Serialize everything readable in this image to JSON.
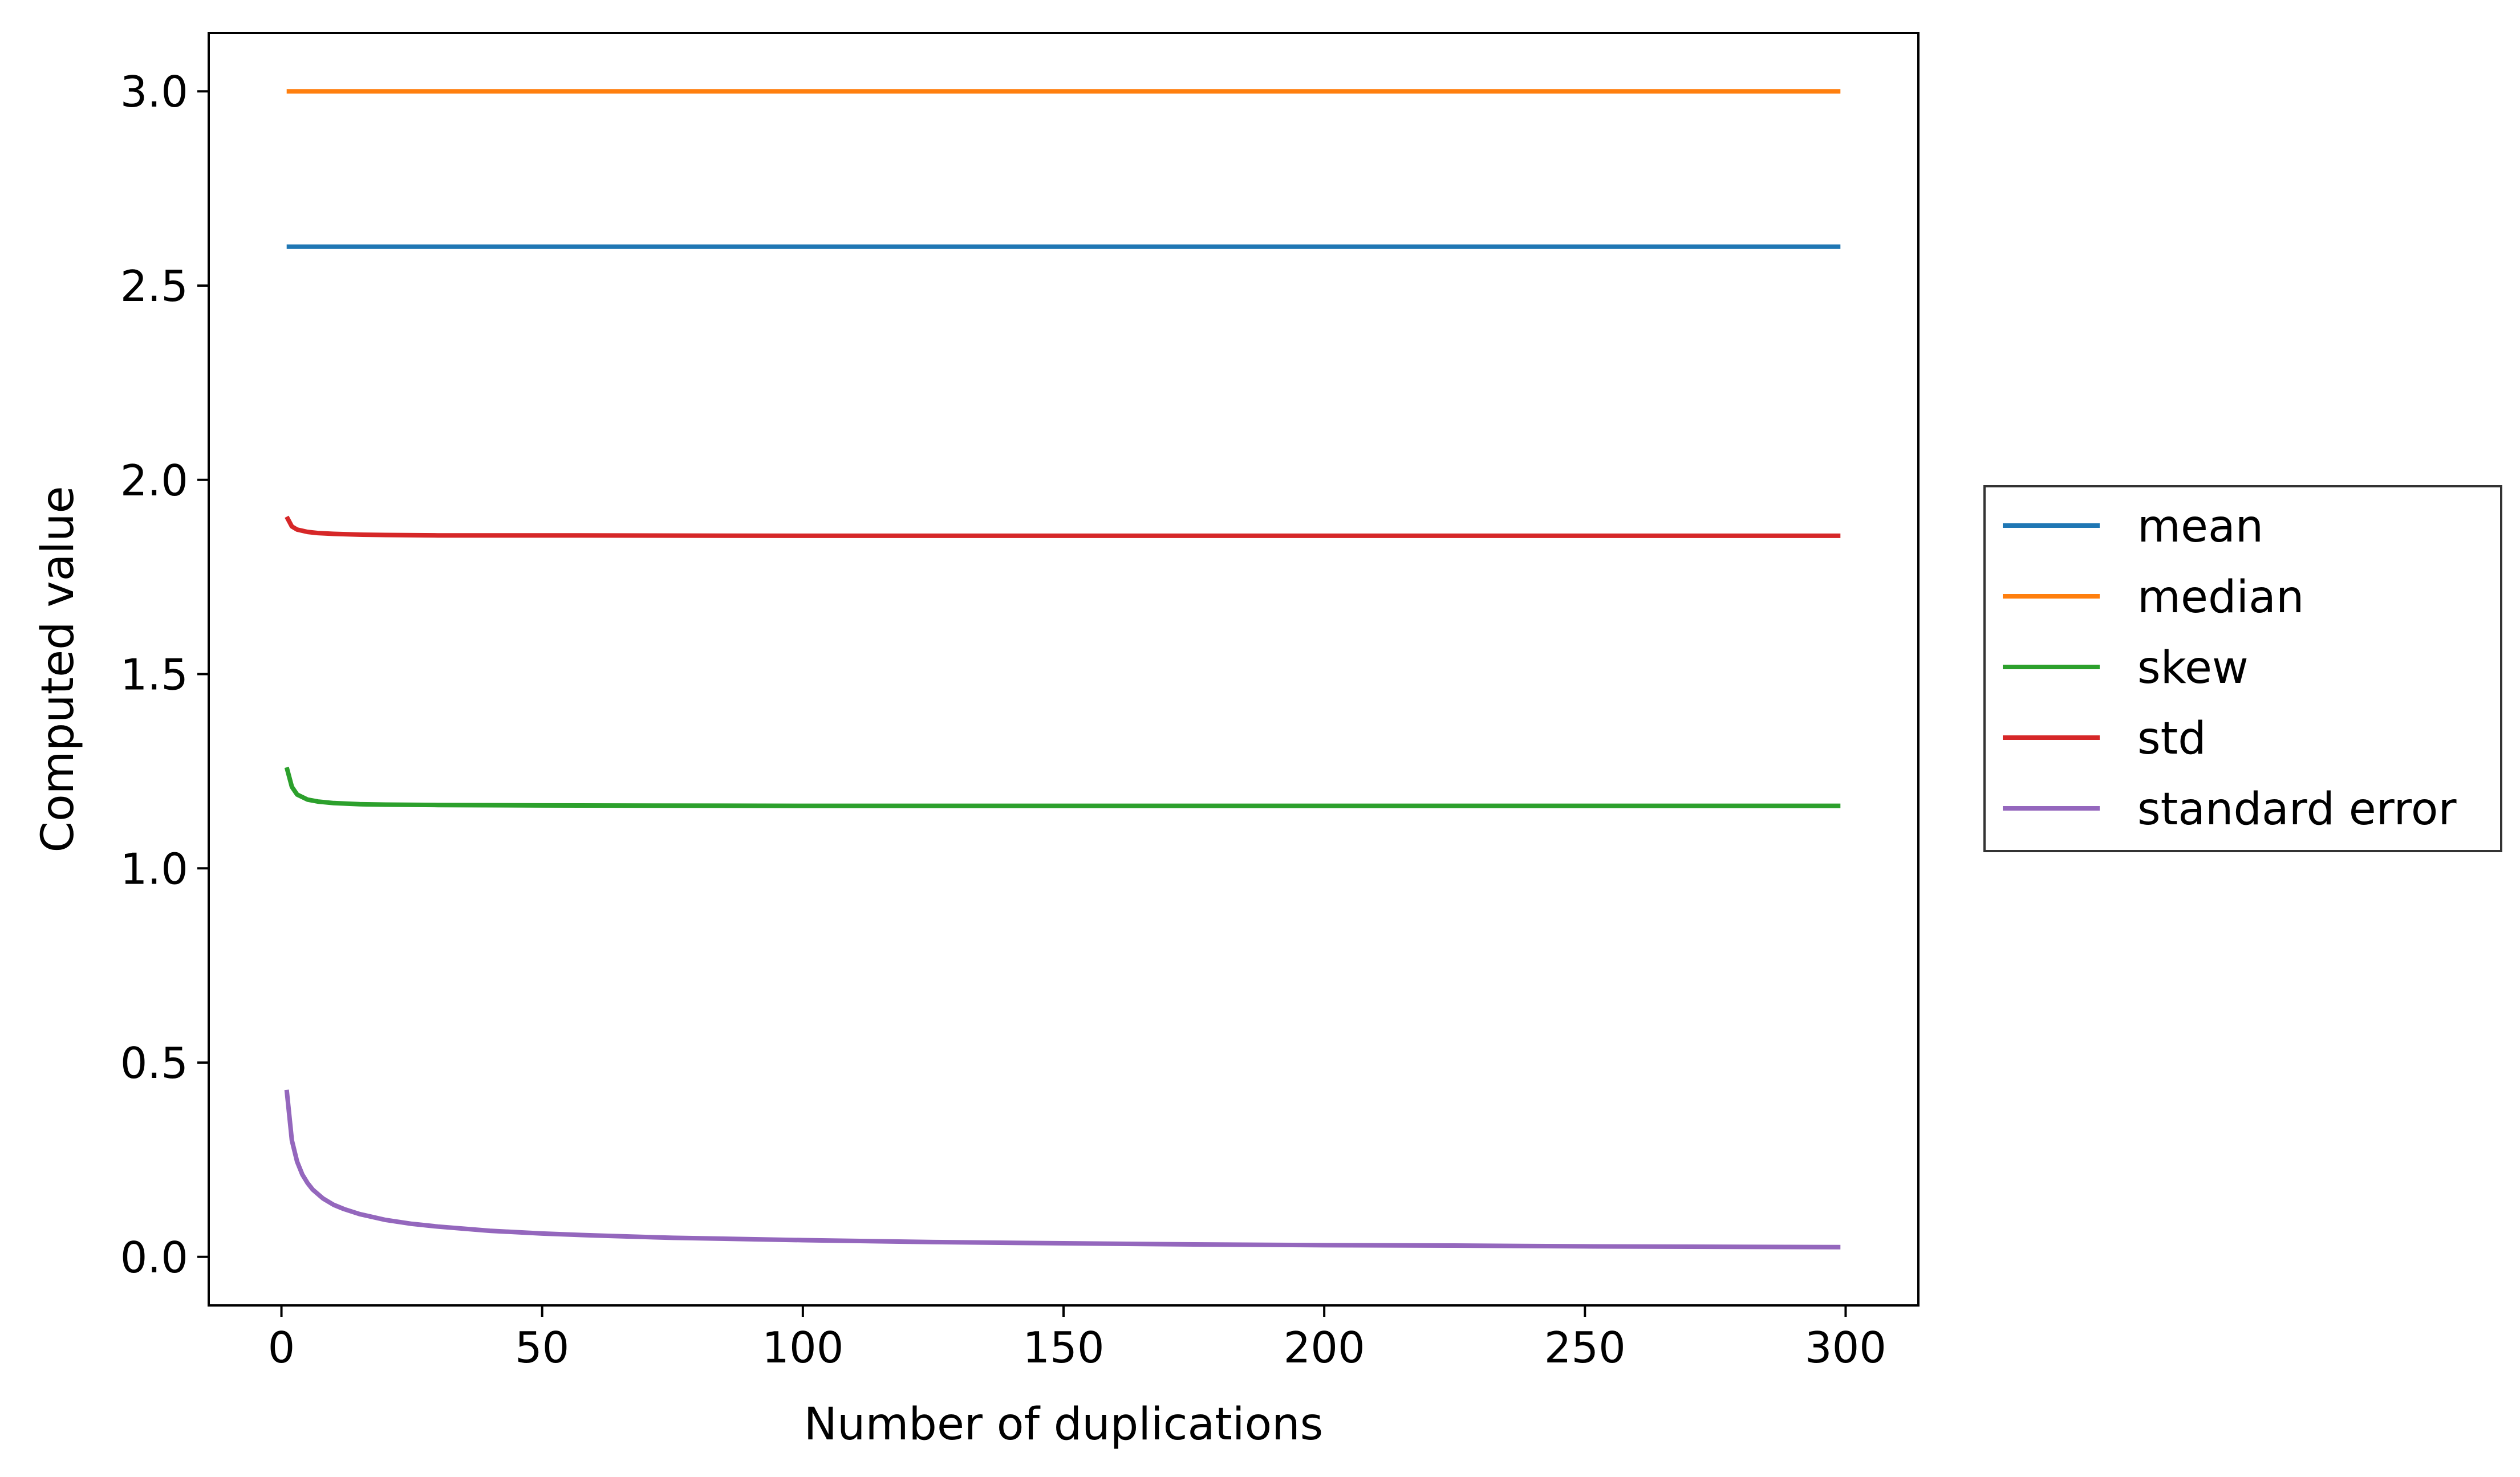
{
  "chart_data": {
    "type": "line",
    "title": "",
    "xlabel": "Number of duplications",
    "ylabel": "Computed value",
    "xlim": [
      -13.95,
      313.95
    ],
    "ylim": [
      -0.125,
      3.15
    ],
    "x_ticks": [
      0,
      50,
      100,
      150,
      200,
      250,
      300
    ],
    "x_tick_labels": [
      "0",
      "50",
      "100",
      "150",
      "200",
      "250",
      "300"
    ],
    "y_ticks": [
      0.0,
      0.5,
      1.0,
      1.5,
      2.0,
      2.5,
      3.0
    ],
    "y_tick_labels": [
      "0.0",
      "0.5",
      "1.0",
      "1.5",
      "2.0",
      "2.5",
      "3.0"
    ],
    "grid": false,
    "legend_position": "center-right outside plot",
    "series": [
      {
        "name": "mean",
        "color": "#1f77b4",
        "x": [
          1,
          2,
          3,
          5,
          10,
          20,
          50,
          100,
          150,
          200,
          250,
          299
        ],
        "y": [
          2.6,
          2.6,
          2.6,
          2.6,
          2.6,
          2.6,
          2.6,
          2.6,
          2.6,
          2.6,
          2.6,
          2.6
        ]
      },
      {
        "name": "median",
        "color": "#ff7f0e",
        "x": [
          1,
          2,
          3,
          5,
          10,
          20,
          50,
          100,
          150,
          200,
          250,
          299
        ],
        "y": [
          3.0,
          3.0,
          3.0,
          3.0,
          3.0,
          3.0,
          3.0,
          3.0,
          3.0,
          3.0,
          3.0,
          3.0
        ]
      },
      {
        "name": "skew",
        "color": "#2ca02c",
        "x": [
          1,
          2,
          3,
          5,
          7,
          10,
          15,
          20,
          30,
          50,
          100,
          150,
          200,
          250,
          299
        ],
        "y": [
          1.26,
          1.21,
          1.19,
          1.177,
          1.172,
          1.168,
          1.165,
          1.164,
          1.163,
          1.162,
          1.161,
          1.161,
          1.161,
          1.161,
          1.161
        ]
      },
      {
        "name": "std",
        "color": "#d62728",
        "x": [
          1,
          2,
          3,
          5,
          7,
          10,
          15,
          20,
          30,
          50,
          100,
          150,
          200,
          250,
          299
        ],
        "y": [
          1.905,
          1.88,
          1.872,
          1.866,
          1.863,
          1.861,
          1.859,
          1.858,
          1.857,
          1.857,
          1.856,
          1.856,
          1.856,
          1.856,
          1.856
        ]
      },
      {
        "name": "standard error",
        "color": "#9467bd",
        "x": [
          1,
          2,
          3,
          4,
          5,
          6,
          8,
          10,
          12,
          15,
          20,
          25,
          30,
          40,
          50,
          60,
          75,
          100,
          125,
          150,
          175,
          200,
          225,
          250,
          275,
          299
        ],
        "y": [
          0.43,
          0.3,
          0.245,
          0.212,
          0.19,
          0.173,
          0.15,
          0.134,
          0.123,
          0.11,
          0.095,
          0.085,
          0.078,
          0.067,
          0.06,
          0.055,
          0.049,
          0.043,
          0.038,
          0.035,
          0.032,
          0.03,
          0.029,
          0.027,
          0.026,
          0.025
        ]
      }
    ]
  }
}
